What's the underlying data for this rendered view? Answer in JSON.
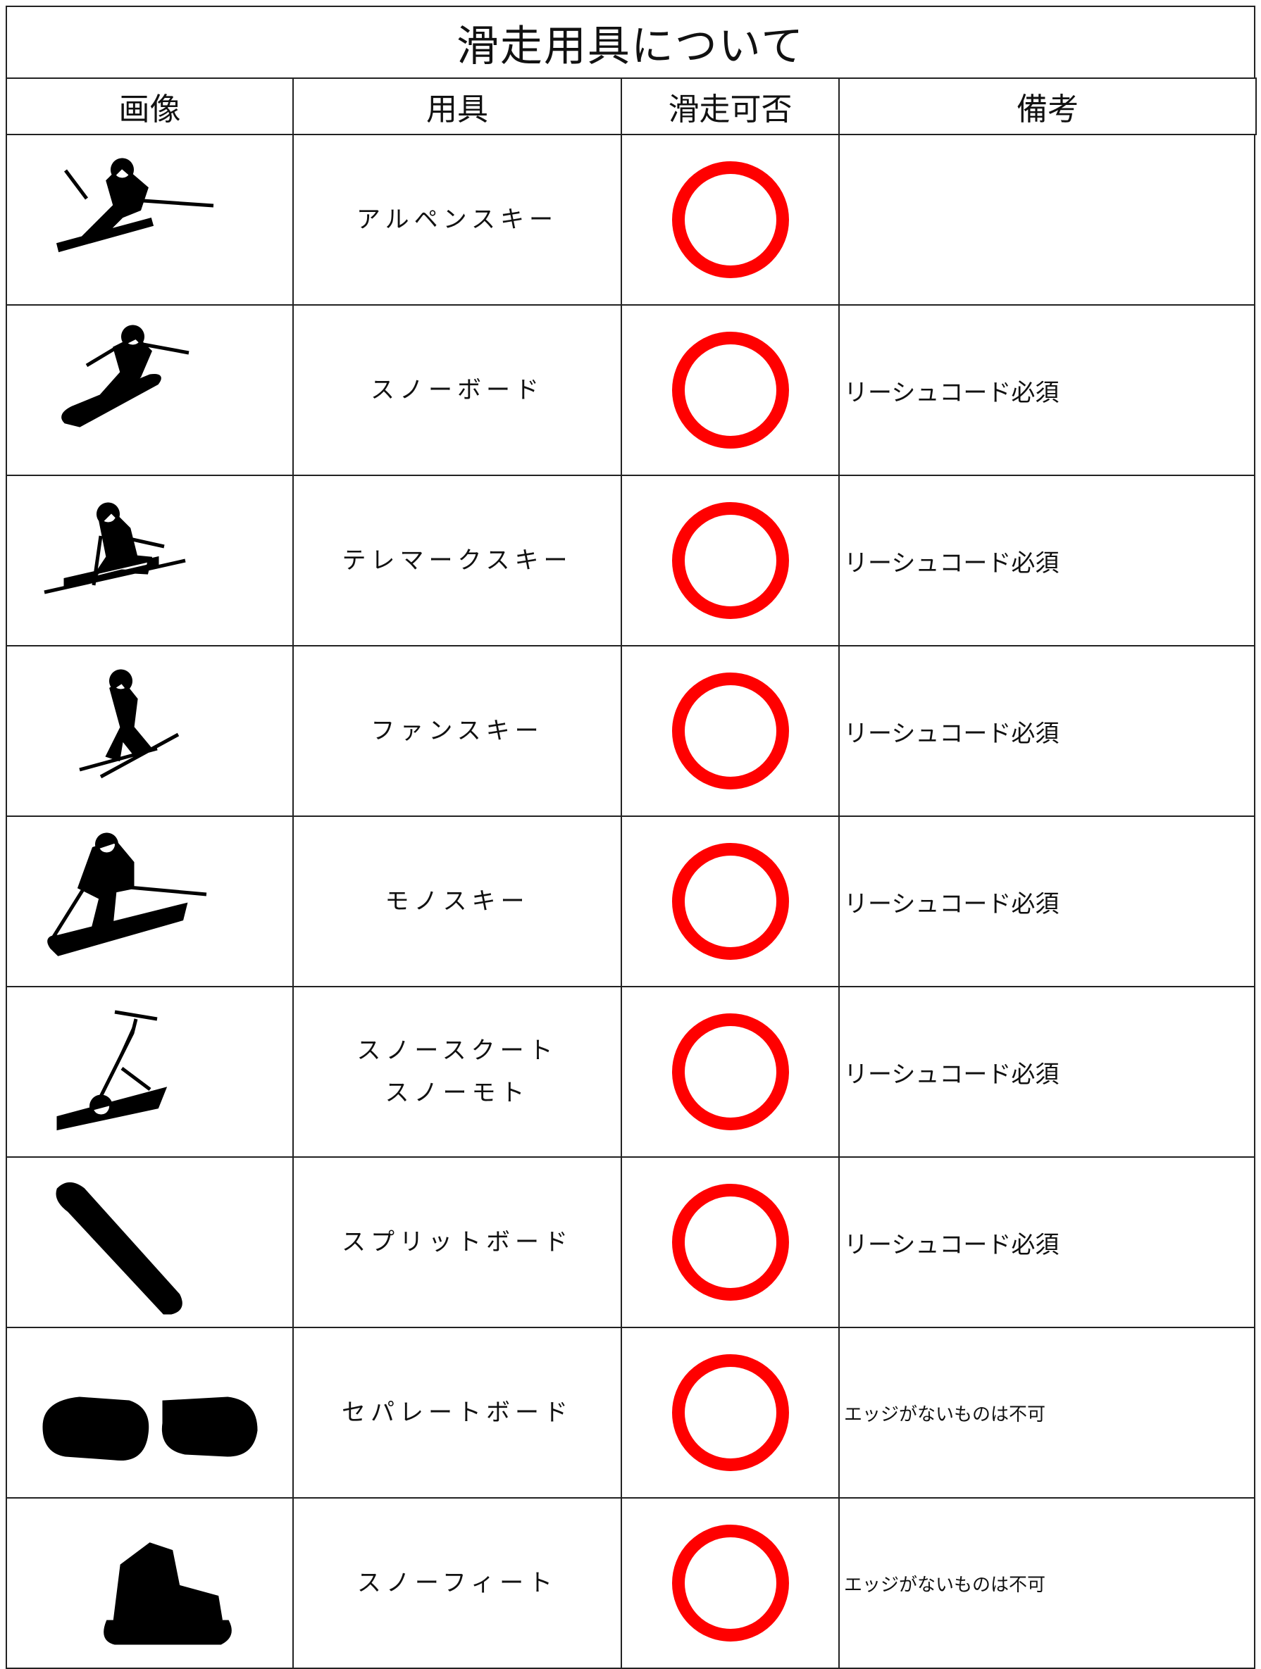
{
  "title": "滑走用具について",
  "header": [
    "画像",
    "用具",
    "滑走可否",
    "備考"
  ],
  "rows": [
    {
      "equipment": [
        "アルペンスキー"
      ]
    },
    {
      "equipment": [
        "スノーボード"
      ],
      "remark": "リーシュコード必須"
    },
    {
      "equipment": [
        "テレマークスキー"
      ],
      "remark": "リーシュコード必須"
    },
    {
      "equipment": [
        "ファンスキー"
      ],
      "remark": "リーシュコード必須"
    },
    {
      "equipment": [
        "モノスキー"
      ],
      "remark": "リーシュコード必須"
    },
    {
      "equipment": [
        "スノースクート",
        "スノーモト"
      ],
      "remark": "リーシュコード必須"
    },
    {
      "equipment": [
        "スプリットボード"
      ],
      "remark": "リーシュコード必須"
    },
    {
      "equipment": [
        "セパレートボード"
      ],
      "remark": "エッジがないものは不可"
    },
    {
      "equipment": [
        "スノーフィート"
      ],
      "remark": "エッジがないものは不可"
    }
  ]
}
